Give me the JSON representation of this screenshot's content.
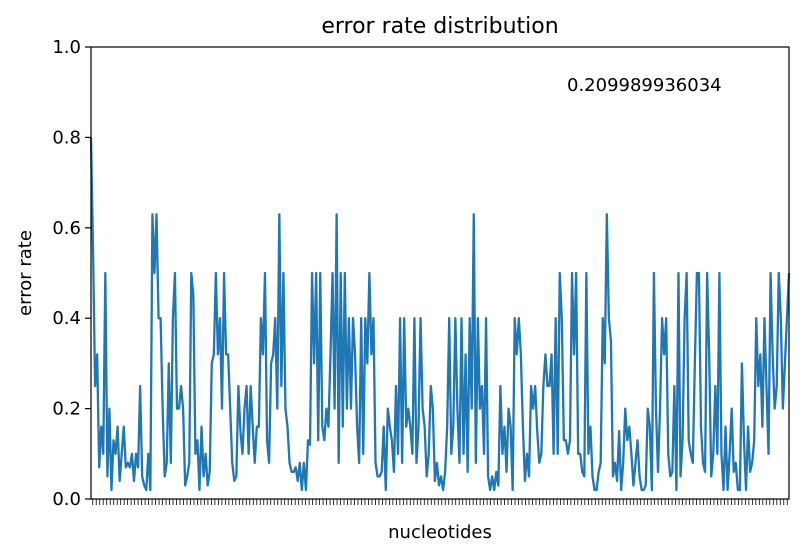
{
  "chart_data": {
    "type": "line",
    "title": "error rate distribution",
    "xlabel": "nucleotides",
    "ylabel": "error rate",
    "annotation": "0.209989936034",
    "ylim": [
      0,
      1
    ],
    "yticks": [
      0.0,
      0.2,
      0.4,
      0.6,
      0.8,
      1.0
    ],
    "ytick_labels": [
      "0.0",
      "0.2",
      "0.4",
      "0.6",
      "0.8",
      "1.0"
    ],
    "x_tick_count": 200,
    "grid": false,
    "line_color": "#1f77b4",
    "series": [
      {
        "values": [
          0.8,
          0.55,
          0.25,
          0.32,
          0.07,
          0.16,
          0.1,
          0.5,
          0.05,
          0.2,
          0.02,
          0.13,
          0.1,
          0.16,
          0.04,
          0.1,
          0.16,
          0.07,
          0.08,
          0.07,
          0.1,
          0.04,
          0.1,
          0.07,
          0.25,
          0.05,
          0.03,
          0.02,
          0.1,
          0.02,
          0.63,
          0.5,
          0.63,
          0.4,
          0.4,
          0.2,
          0.05,
          0.08,
          0.3,
          0.08,
          0.4,
          0.5,
          0.2,
          0.2,
          0.25,
          0.2,
          0.03,
          0.05,
          0.08,
          0.5,
          0.45,
          0.1,
          0.13,
          0.02,
          0.16,
          0.05,
          0.1,
          0.03,
          0.06,
          0.3,
          0.32,
          0.5,
          0.32,
          0.4,
          0.2,
          0.5,
          0.32,
          0.32,
          0.2,
          0.08,
          0.04,
          0.05,
          0.25,
          0.15,
          0.1,
          0.2,
          0.25,
          0.1,
          0.25,
          0.16,
          0.08,
          0.16,
          0.16,
          0.4,
          0.32,
          0.5,
          0.13,
          0.08,
          0.3,
          0.32,
          0.4,
          0.2,
          0.63,
          0.25,
          0.5,
          0.2,
          0.16,
          0.08,
          0.06,
          0.06,
          0.07,
          0.04,
          0.08,
          0.02,
          0.08,
          0.02,
          0.13,
          0.12,
          0.5,
          0.3,
          0.5,
          0.13,
          0.5,
          0.16,
          0.13,
          0.2,
          0.16,
          0.32,
          0.5,
          0.2,
          0.63,
          0.08,
          0.5,
          0.16,
          0.5,
          0.2,
          0.4,
          0.2,
          0.4,
          0.32,
          0.16,
          0.08,
          0.4,
          0.1,
          0.4,
          0.3,
          0.5,
          0.32,
          0.4,
          0.08,
          0.05,
          0.05,
          0.06,
          0.16,
          0.02,
          0.2,
          0.16,
          0.13,
          0.06,
          0.25,
          0.1,
          0.4,
          0.08,
          0.4,
          0.16,
          0.2,
          0.16,
          0.1,
          0.4,
          0.08,
          0.16,
          0.4,
          0.2,
          0.16,
          0.05,
          0.1,
          0.25,
          0.2,
          0.04,
          0.08,
          0.03,
          0.05,
          0.02,
          0.06,
          0.16,
          0.4,
          0.1,
          0.16,
          0.4,
          0.2,
          0.08,
          0.4,
          0.1,
          0.32,
          0.06,
          0.4,
          0.2,
          0.63,
          0.08,
          0.4,
          0.2,
          0.25,
          0.1,
          0.4,
          0.05,
          0.02,
          0.05,
          0.02,
          0.06,
          0.03,
          0.25,
          0.1,
          0.16,
          0.06,
          0.2,
          0.16,
          0.02,
          0.4,
          0.32,
          0.4,
          0.32,
          0.16,
          0.04,
          0.1,
          0.05,
          0.25,
          0.2,
          0.25,
          0.15,
          0.08,
          0.1,
          0.25,
          0.32,
          0.25,
          0.25,
          0.32,
          0.1,
          0.4,
          0.1,
          0.5,
          0.4,
          0.13,
          0.13,
          0.1,
          0.13,
          0.5,
          0.32,
          0.5,
          0.1,
          0.1,
          0.06,
          0.05,
          0.5,
          0.1,
          0.16,
          0.05,
          0.02,
          0.02,
          0.06,
          0.08,
          0.4,
          0.3,
          0.63,
          0.4,
          0.35,
          0.05,
          0.08,
          0.04,
          0.15,
          0.02,
          0.08,
          0.2,
          0.13,
          0.16,
          0.1,
          0.03,
          0.08,
          0.13,
          0.05,
          0.02,
          0.02,
          0.03,
          0.2,
          0.16,
          0.02,
          0.5,
          0.2,
          0.06,
          0.2,
          0.4,
          0.32,
          0.4,
          0.1,
          0.05,
          0.06,
          0.25,
          0.02,
          0.5,
          0.05,
          0.13,
          0.4,
          0.5,
          0.13,
          0.1,
          0.08,
          0.3,
          0.5,
          0.5,
          0.16,
          0.08,
          0.06,
          0.5,
          0.32,
          0.05,
          0.1,
          0.25,
          0.1,
          0.5,
          0.1,
          0.02,
          0.16,
          0.02,
          0.1,
          0.2,
          0.06,
          0.08,
          0.02,
          0.02,
          0.3,
          0.13,
          0.02,
          0.16,
          0.06,
          0.08,
          0.13,
          0.4,
          0.25,
          0.32,
          0.16,
          0.4,
          0.25,
          0.1,
          0.5,
          0.32,
          0.2,
          0.25,
          0.5,
          0.4,
          0.2,
          0.3,
          0.4,
          0.5
        ]
      }
    ]
  }
}
